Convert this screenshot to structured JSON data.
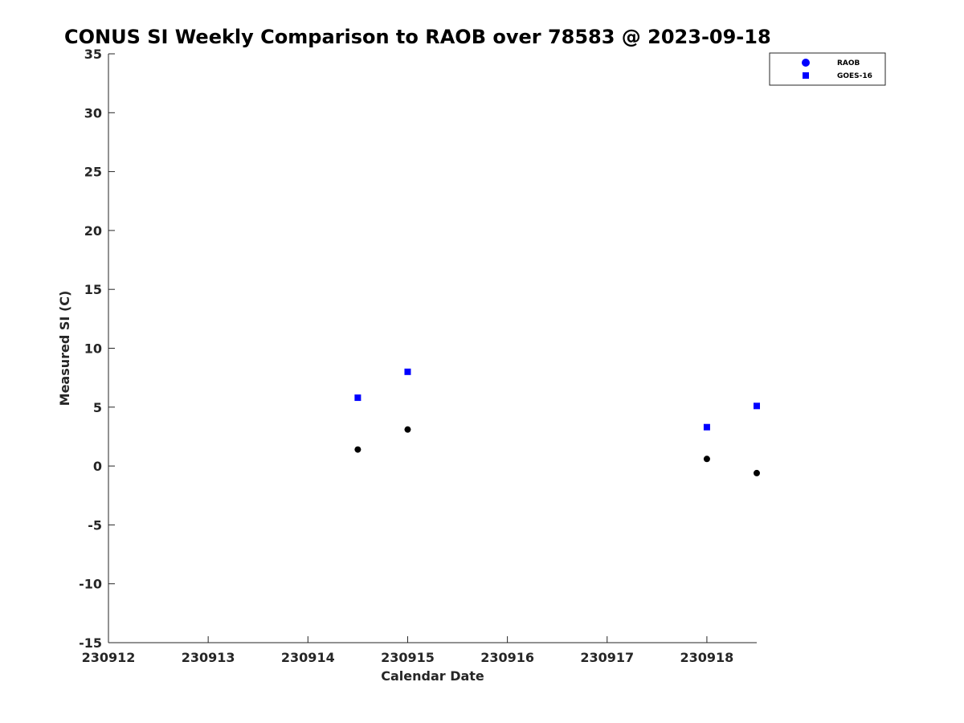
{
  "chart_data": {
    "type": "scatter",
    "title": "CONUS SI Weekly Comparison to RAOB over 78583 @ 2023-09-18",
    "xlabel": "Calendar Date",
    "ylabel": "Measured SI (C)",
    "xlim": [
      "2023-09-12",
      "2023-09-18 12:00"
    ],
    "ylim": [
      -15,
      35
    ],
    "x_ticks": [
      "2023-09-12",
      "2023-09-13",
      "2023-09-14",
      "2023-09-15",
      "2023-09-16",
      "2023-09-17",
      "2023-09-18"
    ],
    "x_tick_labels": [
      "230912",
      "230913",
      "230914",
      "230915",
      "230916",
      "230917",
      "230918"
    ],
    "y_ticks": [
      -15,
      -10,
      -5,
      0,
      5,
      10,
      15,
      20,
      25,
      30,
      35
    ],
    "grid": false,
    "legend_position": "top-right",
    "series": [
      {
        "name": "RAOB",
        "marker": "circle",
        "legend_color": "#0000ff",
        "color": "#000000",
        "points": [
          {
            "x": "2023-09-14 12:00",
            "y": 1.4
          },
          {
            "x": "2023-09-15 00:00",
            "y": 3.1
          },
          {
            "x": "2023-09-18 00:00",
            "y": 0.6
          },
          {
            "x": "2023-09-18 12:00",
            "y": -0.6
          }
        ]
      },
      {
        "name": "GOES-16",
        "marker": "square",
        "legend_color": "#0000ff",
        "color": "#0000ff",
        "points": [
          {
            "x": "2023-09-14 12:00",
            "y": 5.8
          },
          {
            "x": "2023-09-15 00:00",
            "y": 8.0
          },
          {
            "x": "2023-09-18 00:00",
            "y": 3.3
          },
          {
            "x": "2023-09-18 12:00",
            "y": 5.1
          }
        ]
      }
    ]
  }
}
